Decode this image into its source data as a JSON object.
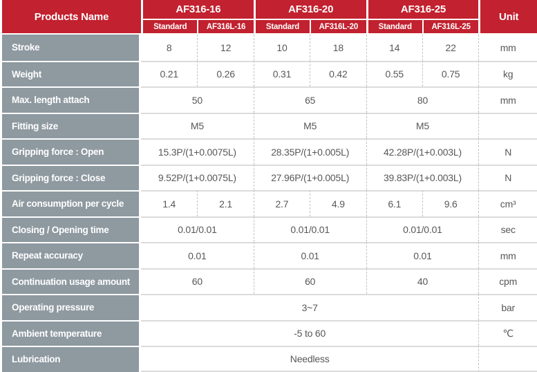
{
  "colors": {
    "header_red": "#C2212F",
    "label_gray": "#8E99A0",
    "value_text": "#57575A",
    "separator_gray": "#DBDBDB"
  },
  "header": {
    "products_name": "Products Name",
    "unit_label": "Unit",
    "groups": [
      {
        "model": "AF316-16",
        "variants": [
          "Standard",
          "AF316L-16"
        ]
      },
      {
        "model": "AF316-20",
        "variants": [
          "Standard",
          "AF316L-20"
        ]
      },
      {
        "model": "AF316-25",
        "variants": [
          "Standard",
          "AF316L-25"
        ]
      }
    ]
  },
  "rows": [
    {
      "label": "Stroke",
      "cells": [
        "8",
        "12",
        "10",
        "18",
        "14",
        "22"
      ],
      "unit": "mm"
    },
    {
      "label": "Weight",
      "cells": [
        "0.21",
        "0.26",
        "0.31",
        "0.42",
        "0.55",
        "0.75"
      ],
      "unit": "kg"
    },
    {
      "label": "Max. length attach",
      "cells": [
        "50",
        "65",
        "80"
      ],
      "unit": "mm"
    },
    {
      "label": "Fitting size",
      "cells": [
        "M5",
        "M5",
        "M5"
      ],
      "unit": ""
    },
    {
      "label": "Gripping force : Open",
      "cells": [
        "15.3P/(1+0.0075L)",
        "28.35P/(1+0.005L)",
        "42.28P/(1+0.003L)"
      ],
      "unit": "N"
    },
    {
      "label": "Gripping force : Close",
      "cells": [
        "9.52P/(1+0.0075L)",
        "27.96P/(1+0.005L)",
        "39.83P/(1+0.003L)"
      ],
      "unit": "N"
    },
    {
      "label": "Air consumption per cycle",
      "cells": [
        "1.4",
        "2.1",
        "2.7",
        "4.9",
        "6.1",
        "9.6"
      ],
      "unit": "cm³"
    },
    {
      "label": "Closing / Opening time",
      "cells": [
        "0.01/0.01",
        "0.01/0.01",
        "0.01/0.01"
      ],
      "unit": "sec"
    },
    {
      "label": "Repeat accuracy",
      "cells": [
        "0.01",
        "0.01",
        "0.01"
      ],
      "unit": "mm"
    },
    {
      "label": "Continuation usage amount",
      "cells": [
        "60",
        "60",
        "40"
      ],
      "unit": "cpm"
    },
    {
      "label": "Operating pressure",
      "cells": [
        "3~7"
      ],
      "unit": "bar"
    },
    {
      "label": "Ambient temperature",
      "cells": [
        "-5 to 60"
      ],
      "unit": "℃"
    },
    {
      "label": "Lubrication",
      "cells": [
        "Needless"
      ],
      "unit": ""
    }
  ]
}
